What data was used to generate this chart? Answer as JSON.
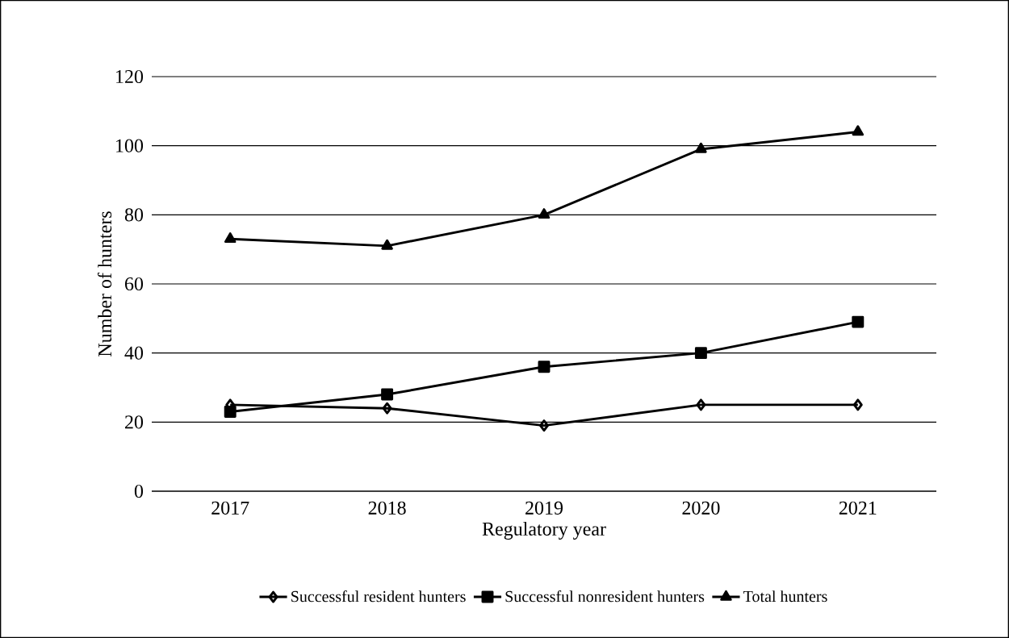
{
  "chart_data": {
    "type": "line",
    "xlabel": "Regulatory year",
    "ylabel": "Number of hunters",
    "categories": [
      "2017",
      "2018",
      "2019",
      "2020",
      "2021"
    ],
    "series": [
      {
        "name": "Successful resident hunters",
        "color": "#000000",
        "marker": "diamond",
        "values": [
          25,
          24,
          19,
          25,
          25
        ]
      },
      {
        "name": "Successful nonresident hunters",
        "color": "#000000",
        "marker": "square",
        "values": [
          23,
          28,
          36,
          40,
          49
        ]
      },
      {
        "name": "Total hunters",
        "color": "#000000",
        "marker": "triangle",
        "values": [
          73,
          71,
          80,
          99,
          104
        ]
      }
    ],
    "ylim": [
      0,
      120
    ],
    "yticks": [
      0,
      20,
      40,
      60,
      80,
      100,
      120
    ],
    "grid": "y",
    "legend": "bottom",
    "line_style": "solid"
  }
}
